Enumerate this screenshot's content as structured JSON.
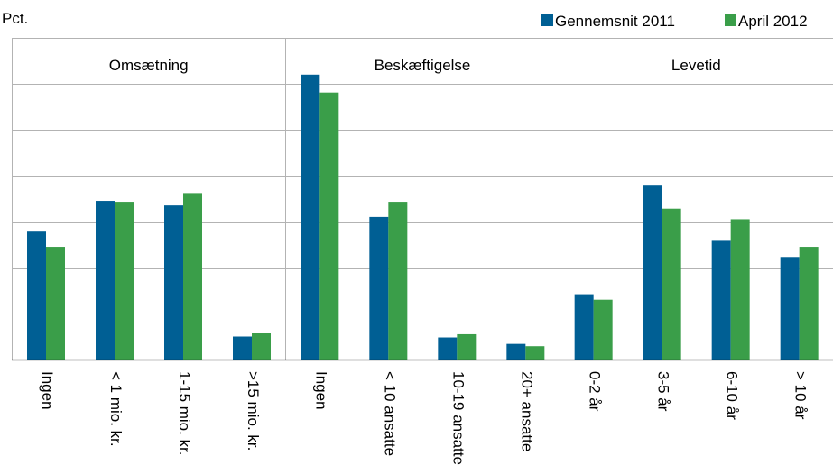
{
  "chart_data": {
    "type": "bar",
    "ylabel": "Pct.",
    "ylim": [
      0,
      60
    ],
    "grid": true,
    "legend_position": "top-right",
    "series": [
      {
        "name": "Gennemsnit 2011",
        "color": "#005f94",
        "values": [
          28,
          34.5,
          33.5,
          5,
          62,
          31,
          4.8,
          3.4,
          14.2,
          38,
          26,
          22.3
        ]
      },
      {
        "name": "April 2012",
        "color": "#3a9e49",
        "values": [
          24.5,
          34.3,
          36.2,
          5.8,
          58.1,
          34.3,
          5.5,
          2.9,
          13,
          32.8,
          30.5,
          24.5
        ]
      }
    ],
    "groups": [
      {
        "label": "Omsætning",
        "categories": [
          "Ingen",
          "< 1 mio. kr.",
          "1-15 mio. kr.",
          ">15 mio. kr."
        ]
      },
      {
        "label": "Beskæftigelse",
        "categories": [
          "Ingen",
          "< 10 ansatte",
          "10-19 ansatte",
          "20+ ansatte"
        ]
      },
      {
        "label": "Levetid",
        "categories": [
          "0-2 år",
          "3-5 år",
          "6-10 år",
          "> 10 år"
        ]
      }
    ]
  }
}
